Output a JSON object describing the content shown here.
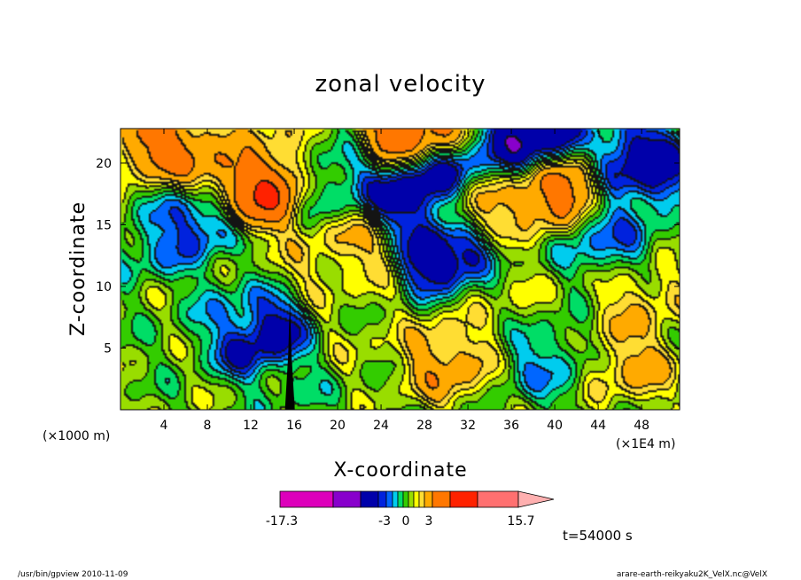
{
  "chart_data": {
    "type": "heatmap",
    "title": "zonal velocity",
    "xlabel": "X-coordinate",
    "ylabel": "Z-coordinate",
    "x_unit_label": "(×1000 m)",
    "x_scale_label": "(×1E4 m)",
    "xlim": [
      0,
      51.5
    ],
    "ylim": [
      0,
      22.8
    ],
    "x_ticks": [
      "4",
      "8",
      "12",
      "16",
      "20",
      "24",
      "28",
      "32",
      "36",
      "40",
      "44",
      "48"
    ],
    "y_ticks": [
      "5",
      "10",
      "15",
      "20"
    ],
    "colorbar": {
      "tick_labels": [
        "-17.3",
        "-3",
        "0",
        "3",
        "15.7"
      ],
      "tick_values": [
        -17.3,
        -3,
        0,
        3,
        15.7
      ],
      "levels": [
        -17.3,
        -12,
        -8,
        -5,
        -4,
        -3,
        -2,
        -1,
        0,
        1,
        2,
        3,
        5,
        8,
        12,
        15.7
      ],
      "colors": [
        "#dd00bb",
        "#8800cc",
        "#0000aa",
        "#0022dd",
        "#0066ff",
        "#00ccee",
        "#00dd66",
        "#33cc00",
        "#99dd00",
        "#ffff00",
        "#ffdd33",
        "#ffaa00",
        "#ff7700",
        "#ff2200",
        "#ff7070",
        "#ffb0b0"
      ]
    },
    "time_label": "t=54000 s",
    "field_features": [
      {
        "x": 2,
        "z": 17,
        "value": 1
      },
      {
        "x": 3,
        "z": 14,
        "value": -3
      },
      {
        "x": 4,
        "z": 21,
        "value": 8
      },
      {
        "x": 6,
        "z": 16,
        "value": -8
      },
      {
        "x": 8,
        "z": 19,
        "value": 6
      },
      {
        "x": 10,
        "z": 8,
        "value": -2
      },
      {
        "x": 13,
        "z": 18,
        "value": 10
      },
      {
        "x": 13,
        "z": 6,
        "value": -9
      },
      {
        "x": 12,
        "z": 22,
        "value": 3
      },
      {
        "x": 16,
        "z": 3,
        "value": -1
      },
      {
        "x": 18,
        "z": 12,
        "value": 2
      },
      {
        "x": 20,
        "z": 18,
        "value": -3
      },
      {
        "x": 22,
        "z": 14,
        "value": 4
      },
      {
        "x": 22,
        "z": 6,
        "value": 1
      },
      {
        "x": 26,
        "z": 17,
        "value": -9
      },
      {
        "x": 27,
        "z": 22,
        "value": 10
      },
      {
        "x": 29,
        "z": 19,
        "value": -9
      },
      {
        "x": 30,
        "z": 13,
        "value": -10
      },
      {
        "x": 30,
        "z": 4,
        "value": 5
      },
      {
        "x": 32,
        "z": 16,
        "value": 5
      },
      {
        "x": 35,
        "z": 9,
        "value": 1
      },
      {
        "x": 38,
        "z": 22,
        "value": -10
      },
      {
        "x": 40,
        "z": 18,
        "value": 8
      },
      {
        "x": 39,
        "z": 4,
        "value": -3
      },
      {
        "x": 45,
        "z": 14,
        "value": -4
      },
      {
        "x": 48,
        "z": 20,
        "value": -8
      },
      {
        "x": 48,
        "z": 9,
        "value": 3
      },
      {
        "x": 47,
        "z": 4,
        "value": 4
      }
    ],
    "mountain": {
      "x_center": 15.6,
      "peak_z": 9.0,
      "half_width": 0.45
    }
  },
  "footer": {
    "left": "/usr/bin/gpview   2010-11-09",
    "right": "arare-earth-reikyaku2K_VelX.nc@VelX"
  }
}
